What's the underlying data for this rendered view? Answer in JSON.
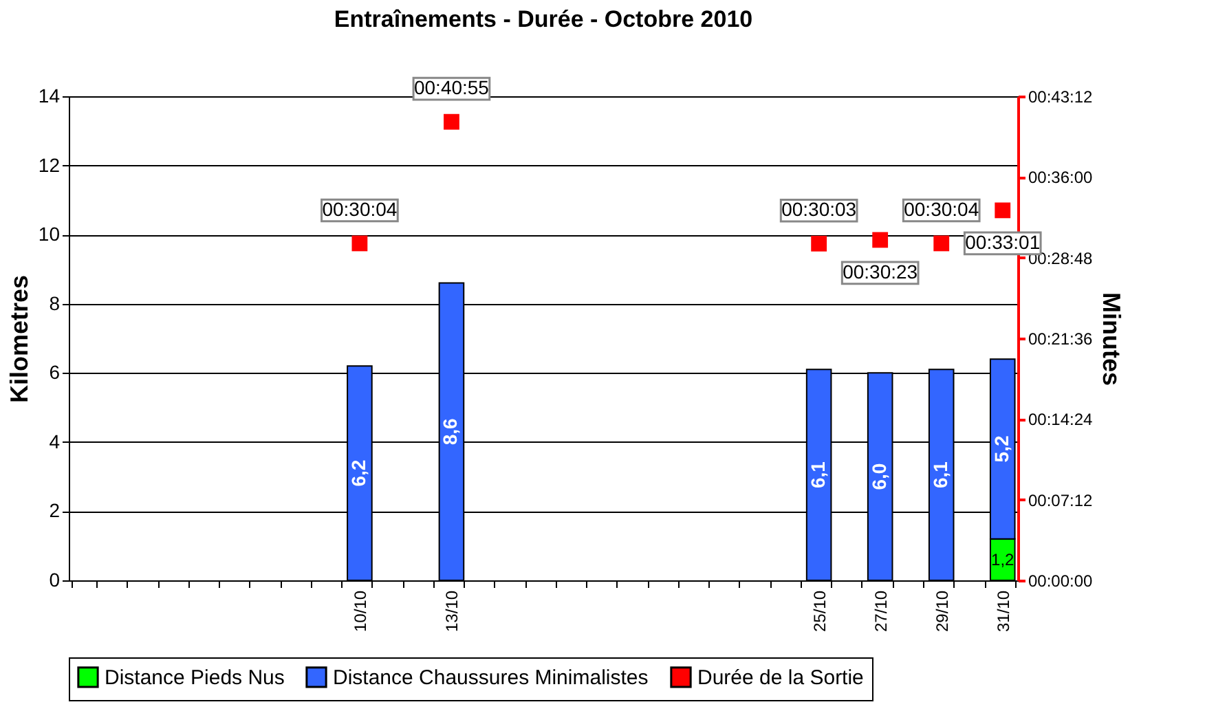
{
  "chart_data": {
    "type": "bar",
    "title": "Entraînements - Durée - Octobre 2010",
    "xlabel": null,
    "ylabel": "Kilometres",
    "y2label": "Minutes",
    "categories": [
      null,
      null,
      null,
      null,
      null,
      null,
      null,
      null,
      null,
      "10/10",
      null,
      null,
      "13/10",
      null,
      null,
      null,
      null,
      null,
      null,
      null,
      null,
      null,
      null,
      null,
      "25/10",
      null,
      "27/10",
      null,
      "29/10",
      null,
      "31/10"
    ],
    "stacked": true,
    "series": [
      {
        "name": "Distance Pieds Nus",
        "color": "#00ff00",
        "values": [
          null,
          null,
          null,
          null,
          null,
          null,
          null,
          null,
          null,
          null,
          null,
          null,
          null,
          null,
          null,
          null,
          null,
          null,
          null,
          null,
          null,
          null,
          null,
          null,
          null,
          null,
          null,
          null,
          null,
          null,
          1.2
        ],
        "value_labels": [
          null,
          null,
          null,
          null,
          null,
          null,
          null,
          null,
          null,
          null,
          null,
          null,
          null,
          null,
          null,
          null,
          null,
          null,
          null,
          null,
          null,
          null,
          null,
          null,
          null,
          null,
          null,
          null,
          null,
          null,
          "1,2"
        ]
      },
      {
        "name": "Distance Chaussures Minimalistes",
        "color": "#3366ff",
        "values": [
          null,
          null,
          null,
          null,
          null,
          null,
          null,
          null,
          null,
          6.2,
          null,
          null,
          8.6,
          null,
          null,
          null,
          null,
          null,
          null,
          null,
          null,
          null,
          null,
          null,
          6.1,
          null,
          6.0,
          null,
          6.1,
          null,
          5.2
        ],
        "value_labels": [
          null,
          null,
          null,
          null,
          null,
          null,
          null,
          null,
          null,
          "6,2",
          null,
          null,
          "8,6",
          null,
          null,
          null,
          null,
          null,
          null,
          null,
          null,
          null,
          null,
          null,
          "6,1",
          null,
          "6,0",
          null,
          "6,1",
          null,
          "5,2"
        ]
      },
      {
        "name": "Durée de la Sortie",
        "type": "scatter",
        "axis": "y2",
        "marker": "square",
        "color": "#ff0000",
        "values": [
          null,
          null,
          null,
          null,
          null,
          null,
          null,
          null,
          null,
          30.07,
          null,
          null,
          40.92,
          null,
          null,
          null,
          null,
          null,
          null,
          null,
          null,
          null,
          null,
          null,
          30.05,
          null,
          30.38,
          null,
          30.07,
          null,
          33.02
        ],
        "value_labels": [
          null,
          null,
          null,
          null,
          null,
          null,
          null,
          null,
          null,
          "00:30:04",
          null,
          null,
          "00:40:55",
          null,
          null,
          null,
          null,
          null,
          null,
          null,
          null,
          null,
          null,
          null,
          "00:30:03",
          null,
          "00:30:23",
          null,
          "00:30:04",
          null,
          "00:33:01"
        ]
      }
    ],
    "ylim": [
      0,
      14
    ],
    "yticks": [
      0,
      2,
      4,
      6,
      8,
      10,
      12,
      14
    ],
    "y2lim": [
      0,
      43.2
    ],
    "y2ticks": [
      {
        "value": 0,
        "label": "00:00:00"
      },
      {
        "value": 7.2,
        "label": "00:07:12"
      },
      {
        "value": 14.4,
        "label": "00:14:24"
      },
      {
        "value": 21.6,
        "label": "00:21:36"
      },
      {
        "value": 28.8,
        "label": "00:28:48"
      },
      {
        "value": 36,
        "label": "00:36:00"
      },
      {
        "value": 43.2,
        "label": "00:43:12"
      }
    ],
    "grid": "y",
    "legend": "bottom"
  }
}
